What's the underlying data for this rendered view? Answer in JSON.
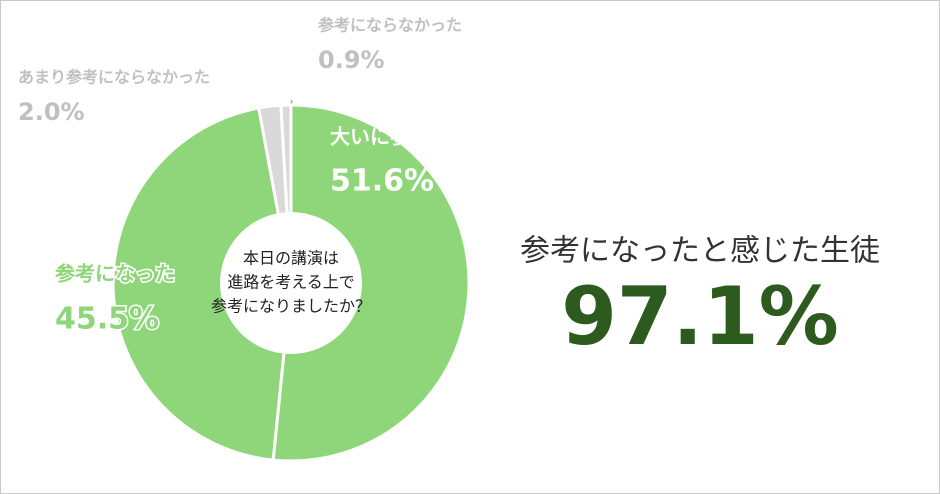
{
  "chart_data": {
    "type": "pie",
    "donut": true,
    "categories": [
      "大いに参考になった",
      "参考になった",
      "あまり参考にならなかった",
      "参考にならなかった"
    ],
    "values": [
      51.6,
      45.5,
      2.0,
      0.9
    ],
    "value_labels": [
      "51.6%",
      "45.5%",
      "2.0%",
      "0.9%"
    ],
    "colors": [
      "#8fd67a",
      "#8fd67a",
      "#d9d9d9",
      "#d9d9d9"
    ],
    "label_colors": [
      "#ffffff",
      "#8fd67a",
      "#c0c0c0",
      "#c0c0c0"
    ],
    "center_text": [
      "本日の講演は",
      "進路を考える上で",
      "参考になりましたか？"
    ],
    "summary_text": "参考になったと感じた生徒",
    "summary_value": "97.1%"
  }
}
